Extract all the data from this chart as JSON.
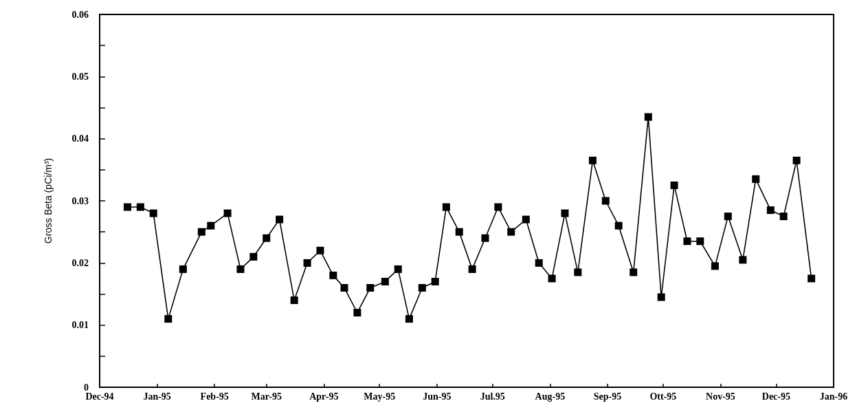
{
  "chart_data": {
    "type": "line",
    "ylabel": "Gross Beta (pCi/m³)",
    "x": [
      "1994-12-16",
      "1994-12-23",
      "1994-12-30",
      "1995-01-07",
      "1995-01-15",
      "1995-01-25",
      "1995-01-30",
      "1995-02-08",
      "1995-02-15",
      "1995-02-22",
      "1995-03-01",
      "1995-03-08",
      "1995-03-16",
      "1995-03-23",
      "1995-03-30",
      "1995-04-06",
      "1995-04-12",
      "1995-04-19",
      "1995-04-26",
      "1995-05-04",
      "1995-05-11",
      "1995-05-17",
      "1995-05-24",
      "1995-05-31",
      "1995-06-06",
      "1995-06-13",
      "1995-06-20",
      "1995-06-27",
      "1995-07-04",
      "1995-07-11",
      "1995-07-19",
      "1995-07-26",
      "1995-08-02",
      "1995-08-09",
      "1995-08-16",
      "1995-08-24",
      "1995-08-31",
      "1995-09-07",
      "1995-09-15",
      "1995-09-23",
      "1995-09-30",
      "1995-10-07",
      "1995-10-14",
      "1995-10-21",
      "1995-10-29",
      "1995-11-05",
      "1995-11-13",
      "1995-11-20",
      "1995-11-28",
      "1995-12-05",
      "1995-12-12",
      "1995-12-20"
    ],
    "series": [
      {
        "color": "#000000",
        "values": [
          0.029,
          0.029,
          0.028,
          0.011,
          0.019,
          0.025,
          0.026,
          0.028,
          0.019,
          0.021,
          0.024,
          0.027,
          0.014,
          0.02,
          0.022,
          0.018,
          0.016,
          0.012,
          0.016,
          0.017,
          0.019,
          0.011,
          0.016,
          0.017,
          0.029,
          0.025,
          0.019,
          0.024,
          0.029,
          0.025,
          0.027,
          0.02,
          0.0175,
          0.028,
          0.0185,
          0.0365,
          0.03,
          0.026,
          0.0185,
          0.0435,
          0.0145,
          0.0325,
          0.0235,
          0.0235,
          0.0195,
          0.0275,
          0.0205,
          0.0335,
          0.0285,
          0.0275,
          0.0365,
          0.0175
        ]
      }
    ],
    "xlim": [
      "1994-12-01",
      "1996-01-01"
    ],
    "xticks": [
      {
        "value": "1994-12-01",
        "label": "Dec-94"
      },
      {
        "value": "1995-01-01",
        "label": "Jan-95"
      },
      {
        "value": "1995-02-01",
        "label": "Feb-95"
      },
      {
        "value": "1995-03-01",
        "label": "Mar-95"
      },
      {
        "value": "1995-04-01",
        "label": "Apr-95"
      },
      {
        "value": "1995-05-01",
        "label": "May-95"
      },
      {
        "value": "1995-06-01",
        "label": "Jun-95"
      },
      {
        "value": "1995-07-01",
        "label": "Jul.95"
      },
      {
        "value": "1995-08-01",
        "label": "Aug-95"
      },
      {
        "value": "1995-09-01",
        "label": "Sep-95"
      },
      {
        "value": "1995-10-01",
        "label": "Ott-95"
      },
      {
        "value": "1995-11-01",
        "label": "Nov-95"
      },
      {
        "value": "1995-12-01",
        "label": "Dec-95"
      },
      {
        "value": "1996-01-01",
        "label": "Jan-96"
      }
    ],
    "ylim": [
      0,
      0.06
    ],
    "yticks": [
      0,
      {
        "value": 0.005,
        "label": null
      },
      {
        "value": 0.01,
        "label": "0.01"
      },
      {
        "value": 0.015,
        "label": null
      },
      {
        "value": 0.02,
        "label": "0.02"
      },
      {
        "value": 0.025,
        "label": null
      },
      {
        "value": 0.03,
        "label": "0.03"
      },
      {
        "value": 0.035,
        "label": null
      },
      {
        "value": 0.04,
        "label": "0.04"
      },
      {
        "value": 0.045,
        "label": null
      },
      {
        "value": 0.05,
        "label": "0.05"
      },
      {
        "value": 0.055,
        "label": null
      },
      {
        "value": 0.06,
        "label": "0.06"
      }
    ],
    "grid": false,
    "marker": "square",
    "line_style": "solid"
  }
}
